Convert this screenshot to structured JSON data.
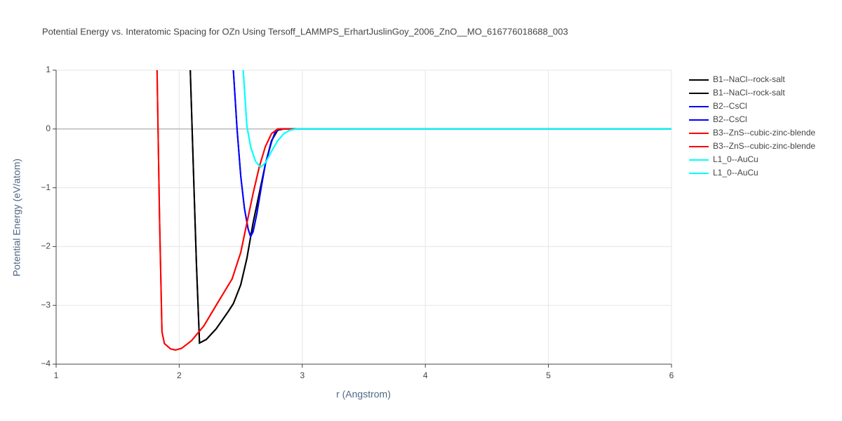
{
  "chart_data": {
    "type": "line",
    "title": "Potential Energy vs. Interatomic Spacing for OZn Using Tersoff_LAMMPS_ErhartJuslinGoy_2006_ZnO__MO_616776018688_003",
    "x_label": "r (Angstrom)",
    "y_label": "Potential Energy (eV/atom)",
    "xlim": [
      1,
      6
    ],
    "ylim": [
      -4,
      1
    ],
    "xticks": [
      1,
      2,
      3,
      4,
      5,
      6
    ],
    "yticks": [
      {
        "value": -4,
        "label": "−4"
      },
      {
        "value": -3,
        "label": "−3"
      },
      {
        "value": -2,
        "label": "−2"
      },
      {
        "value": -1,
        "label": "−1"
      },
      0,
      1
    ],
    "grid": true,
    "legend": "right",
    "series": [
      {
        "name": "B1--NaCl--rock-salt",
        "color": "#000000",
        "x": [
          2.09,
          2.12,
          2.14,
          2.165,
          2.22,
          2.3,
          2.4,
          2.44,
          2.5,
          2.55,
          2.6,
          2.65,
          2.7,
          2.75,
          2.8,
          2.85,
          3,
          4,
          5,
          6
        ],
        "values": [
          1,
          -1.0,
          -2.3,
          -3.64,
          -3.58,
          -3.4,
          -3.1,
          -2.97,
          -2.65,
          -2.2,
          -1.6,
          -1.1,
          -0.6,
          -0.2,
          -0.02,
          0,
          0,
          0,
          0,
          0
        ]
      },
      {
        "name": "B1--NaCl--rock-salt",
        "color": "#000000",
        "x": [
          2.09,
          2.12,
          2.14,
          2.165,
          2.22,
          2.3,
          2.4,
          2.44,
          2.5,
          2.55,
          2.6,
          2.65,
          2.7,
          2.75,
          2.8,
          2.85,
          3,
          4,
          5,
          6
        ],
        "values": [
          1,
          -1.0,
          -2.3,
          -3.64,
          -3.58,
          -3.4,
          -3.1,
          -2.97,
          -2.65,
          -2.2,
          -1.6,
          -1.1,
          -0.6,
          -0.2,
          -0.02,
          0,
          0,
          0,
          0,
          0
        ]
      },
      {
        "name": "B2--CsCl",
        "color": "#0000ff",
        "x": [
          2.44,
          2.47,
          2.5,
          2.53,
          2.56,
          2.58,
          2.6,
          2.63,
          2.67,
          2.7,
          2.75,
          2.78,
          2.82,
          3,
          4,
          5,
          6
        ],
        "values": [
          1,
          0,
          -0.8,
          -1.35,
          -1.7,
          -1.83,
          -1.75,
          -1.45,
          -0.95,
          -0.6,
          -0.22,
          -0.05,
          0,
          0,
          0,
          0,
          0
        ]
      },
      {
        "name": "B2--CsCl",
        "color": "#0000ff",
        "x": [
          2.44,
          2.47,
          2.5,
          2.53,
          2.56,
          2.58,
          2.6,
          2.63,
          2.67,
          2.7,
          2.75,
          2.78,
          2.82,
          3,
          4,
          5,
          6
        ],
        "values": [
          1,
          0,
          -0.8,
          -1.35,
          -1.7,
          -1.83,
          -1.75,
          -1.45,
          -0.95,
          -0.6,
          -0.22,
          -0.05,
          0,
          0,
          0,
          0,
          0
        ]
      },
      {
        "name": "B3--ZnS--cubic-zinc-blende",
        "color": "#ff0000",
        "x": [
          1.82,
          1.84,
          1.86,
          1.88,
          1.93,
          1.97,
          2.02,
          2.1,
          2.2,
          2.3,
          2.43,
          2.5,
          2.55,
          2.6,
          2.65,
          2.7,
          2.75,
          2.8,
          3,
          4,
          5,
          6
        ],
        "values": [
          1,
          -1.5,
          -3.45,
          -3.65,
          -3.74,
          -3.76,
          -3.73,
          -3.6,
          -3.35,
          -3.0,
          -2.55,
          -2.1,
          -1.6,
          -1.1,
          -0.65,
          -0.3,
          -0.08,
          0,
          0,
          0,
          0,
          0
        ]
      },
      {
        "name": "B3--ZnS--cubic-zinc-blende",
        "color": "#ff0000",
        "x": [
          1.82,
          1.84,
          1.86,
          1.88,
          1.93,
          1.97,
          2.02,
          2.1,
          2.2,
          2.3,
          2.43,
          2.5,
          2.55,
          2.6,
          2.65,
          2.7,
          2.75,
          2.8,
          3,
          4,
          5,
          6
        ],
        "values": [
          1,
          -1.5,
          -3.45,
          -3.65,
          -3.74,
          -3.76,
          -3.73,
          -3.6,
          -3.35,
          -3.0,
          -2.55,
          -2.1,
          -1.6,
          -1.1,
          -0.65,
          -0.3,
          -0.08,
          0,
          0,
          0,
          0,
          0
        ]
      },
      {
        "name": "L1_0--AuCu",
        "color": "#00ffff",
        "x": [
          2.52,
          2.55,
          2.58,
          2.62,
          2.66,
          2.7,
          2.75,
          2.8,
          2.85,
          2.9,
          2.95,
          3,
          4,
          5,
          6
        ],
        "values": [
          1,
          0.05,
          -0.3,
          -0.55,
          -0.65,
          -0.58,
          -0.38,
          -0.2,
          -0.08,
          -0.02,
          0,
          0,
          0,
          0,
          0
        ]
      },
      {
        "name": "L1_0--AuCu",
        "color": "#00ffff",
        "x": [
          2.52,
          2.55,
          2.58,
          2.62,
          2.66,
          2.7,
          2.75,
          2.8,
          2.85,
          2.9,
          2.95,
          3,
          4,
          5,
          6
        ],
        "values": [
          1,
          0.05,
          -0.3,
          -0.55,
          -0.65,
          -0.58,
          -0.38,
          -0.2,
          -0.08,
          -0.02,
          0,
          0,
          0,
          0,
          0
        ]
      }
    ]
  }
}
